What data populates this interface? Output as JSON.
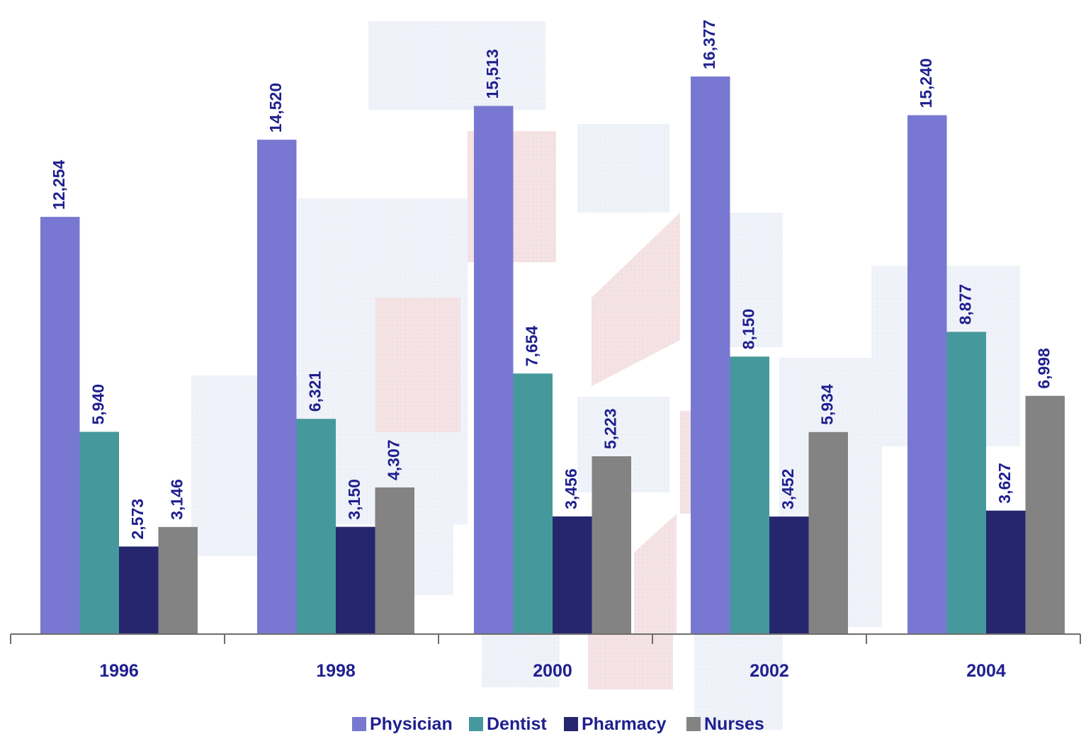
{
  "chart_data": {
    "type": "bar",
    "categories": [
      "1996",
      "1998",
      "2000",
      "2002",
      "2004"
    ],
    "series": [
      {
        "name": "Physician",
        "color": "#7878d2",
        "values": [
          12254,
          14520,
          15513,
          16377,
          15240
        ],
        "labels": [
          "12,254",
          "14,520",
          "15,513",
          "16,377",
          "15,240"
        ]
      },
      {
        "name": "Dentist",
        "color": "#45999c",
        "values": [
          5940,
          6321,
          7654,
          8150,
          8877
        ],
        "labels": [
          "5,940",
          "6,321",
          "7,654",
          "8,150",
          "8,877"
        ]
      },
      {
        "name": "Pharmacy",
        "color": "#26266e",
        "values": [
          2573,
          3150,
          3456,
          3452,
          3627
        ],
        "labels": [
          "2,573",
          "3,150",
          "3,456",
          "3,452",
          "3,627"
        ]
      },
      {
        "name": "Nurses",
        "color": "#838383",
        "values": [
          3146,
          4307,
          5223,
          5934,
          6998
        ],
        "labels": [
          "3,146",
          "4,307",
          "5,223",
          "5,934",
          "6,998"
        ]
      }
    ],
    "ylim": [
      0,
      18000
    ],
    "grid": false,
    "legend_position": "bottom",
    "label_color": "#1f1f8f",
    "axis_color": "#6e6e6e"
  }
}
